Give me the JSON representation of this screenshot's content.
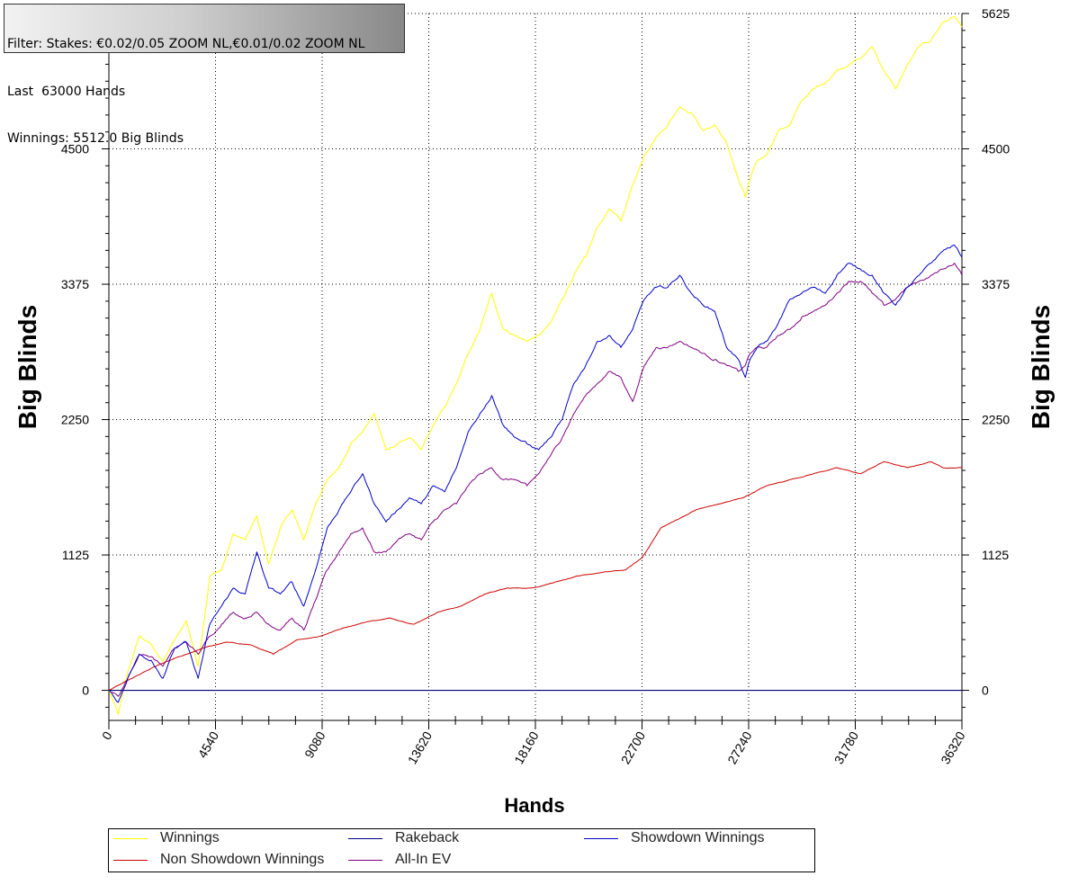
{
  "filter_box": {
    "line1": "Filter: Stakes: €0.02/0.05 ZOOM NL,€0.01/0.02 ZOOM NL",
    "line2": "Last  63000 Hands",
    "line3": "Winnings: 5512.0 Big Blinds"
  },
  "chart_data": {
    "type": "line",
    "xlabel": "Hands",
    "ylabel": "Big Blinds",
    "ylabel_right": "Big Blinds",
    "xlim": [
      0,
      36320
    ],
    "ylim": [
      -250,
      5625
    ],
    "x_ticks": [
      0,
      4540,
      9080,
      13620,
      18160,
      22700,
      27240,
      31780,
      36320
    ],
    "x_tick_labels": [
      "0",
      "4540",
      "9080",
      "13620",
      "18160",
      "22700",
      "27240",
      "31780",
      "36320"
    ],
    "y_ticks": [
      0,
      1125,
      2250,
      3375,
      4500,
      5625
    ],
    "y_tick_labels_left": [
      "0",
      "1125",
      "2250",
      "3375",
      "4500"
    ],
    "y_tick_labels_right": [
      "0",
      "1125",
      "2250",
      "3375",
      "4500",
      "5625"
    ],
    "grid": true,
    "legend_position": "bottom",
    "series": [
      {
        "name": "Winnings",
        "color": "#ffff00",
        "x": [
          0,
          400,
          800,
          1300,
          1800,
          2300,
          2800,
          3300,
          3800,
          4300,
          4800,
          5300,
          5800,
          6300,
          6800,
          7300,
          7800,
          8300,
          8800,
          9300,
          9800,
          10300,
          10800,
          11300,
          11800,
          12300,
          12800,
          13300,
          13800,
          14300,
          14800,
          15300,
          15800,
          16300,
          16800,
          17300,
          17800,
          18300,
          18800,
          19300,
          19800,
          20300,
          20800,
          21300,
          21800,
          22300,
          22800,
          23300,
          23800,
          24300,
          24800,
          25300,
          25800,
          26300,
          26800,
          27100,
          27300,
          27600,
          28000,
          28500,
          29000,
          29500,
          30000,
          30500,
          31000,
          31500,
          32000,
          32500,
          33000,
          33500,
          34000,
          34500,
          35000,
          35500,
          36000,
          36320
        ],
        "values": [
          0,
          -200,
          150,
          450,
          380,
          240,
          420,
          580,
          200,
          950,
          1000,
          1300,
          1250,
          1450,
          1050,
          1350,
          1500,
          1250,
          1550,
          1750,
          1850,
          2050,
          2150,
          2300,
          2000,
          2050,
          2100,
          2000,
          2200,
          2350,
          2550,
          2800,
          3000,
          3300,
          3000,
          2950,
          2900,
          2950,
          3050,
          3250,
          3450,
          3600,
          3850,
          4000,
          3900,
          4200,
          4450,
          4600,
          4700,
          4850,
          4800,
          4650,
          4700,
          4550,
          4250,
          4100,
          4250,
          4400,
          4450,
          4650,
          4700,
          4900,
          5000,
          5050,
          5150,
          5200,
          5250,
          5350,
          5150,
          5000,
          5200,
          5350,
          5400,
          5550,
          5600,
          5512
        ]
      },
      {
        "name": "Rakeback",
        "color": "#000080",
        "x": [
          0,
          36320
        ],
        "values": [
          0,
          0
        ]
      },
      {
        "name": "Showdown Winnings",
        "color": "#0000c8",
        "x": [
          0,
          400,
          800,
          1300,
          1800,
          2300,
          2800,
          3300,
          3800,
          4300,
          4800,
          5300,
          5800,
          6300,
          6800,
          7300,
          7800,
          8300,
          8800,
          9300,
          9800,
          10300,
          10800,
          11300,
          11800,
          12300,
          12800,
          13300,
          13800,
          14300,
          14800,
          15300,
          15800,
          16300,
          16800,
          17300,
          17800,
          18300,
          18800,
          19300,
          19800,
          20300,
          20800,
          21300,
          21800,
          22300,
          22800,
          23300,
          23800,
          24300,
          24800,
          25300,
          25800,
          26300,
          26800,
          27100,
          27300,
          27600,
          28000,
          28500,
          29000,
          29500,
          30000,
          30500,
          31000,
          31500,
          32000,
          32500,
          33000,
          33500,
          34000,
          34500,
          35000,
          35500,
          36000,
          36320
        ],
        "values": [
          0,
          -100,
          100,
          300,
          250,
          100,
          350,
          400,
          100,
          550,
          700,
          850,
          800,
          1150,
          850,
          800,
          900,
          700,
          1000,
          1350,
          1500,
          1650,
          1800,
          1550,
          1400,
          1500,
          1600,
          1550,
          1700,
          1650,
          1850,
          2150,
          2300,
          2450,
          2200,
          2100,
          2050,
          2000,
          2100,
          2250,
          2550,
          2700,
          2900,
          2950,
          2850,
          3000,
          3250,
          3350,
          3350,
          3450,
          3300,
          3200,
          3150,
          2850,
          2750,
          2600,
          2750,
          2850,
          2900,
          3050,
          3250,
          3300,
          3350,
          3300,
          3450,
          3550,
          3500,
          3450,
          3300,
          3200,
          3350,
          3450,
          3550,
          3650,
          3700,
          3600
        ]
      },
      {
        "name": "Non Showdown Winnings",
        "color": "#cc0000",
        "x": [
          0,
          1000,
          2000,
          3000,
          4000,
          5000,
          6000,
          7000,
          8000,
          9000,
          10000,
          11000,
          12000,
          13000,
          14000,
          15000,
          16000,
          17000,
          18000,
          19000,
          20000,
          21000,
          22000,
          22700,
          23500,
          24000,
          25000,
          26000,
          27000,
          28000,
          29000,
          30000,
          31000,
          32000,
          32500,
          33000,
          34000,
          35000,
          35500,
          36320
        ],
        "values": [
          0,
          100,
          200,
          280,
          350,
          400,
          380,
          300,
          420,
          450,
          520,
          570,
          600,
          550,
          650,
          700,
          800,
          850,
          850,
          900,
          950,
          980,
          1000,
          1100,
          1350,
          1400,
          1500,
          1550,
          1600,
          1700,
          1750,
          1800,
          1850,
          1800,
          1850,
          1900,
          1850,
          1900,
          1850,
          1850
        ]
      },
      {
        "name": "All-In EV",
        "color": "#800080",
        "x": [
          0,
          400,
          800,
          1300,
          1800,
          2300,
          2800,
          3300,
          3800,
          4300,
          4800,
          5300,
          5800,
          6300,
          6800,
          7300,
          7800,
          8300,
          8800,
          9300,
          9800,
          10300,
          10800,
          11300,
          11800,
          12300,
          12800,
          13300,
          13800,
          14300,
          14800,
          15300,
          15800,
          16300,
          16800,
          17300,
          17800,
          18300,
          18800,
          19300,
          19800,
          20300,
          20800,
          21300,
          21800,
          22300,
          22800,
          23300,
          23800,
          24300,
          24800,
          25300,
          25800,
          26300,
          26800,
          27100,
          27300,
          27600,
          28000,
          28500,
          29000,
          29500,
          30000,
          30500,
          31000,
          31500,
          32000,
          32500,
          33000,
          33500,
          34000,
          34500,
          35000,
          35500,
          36000,
          36320
        ],
        "values": [
          0,
          -50,
          100,
          300,
          280,
          200,
          350,
          400,
          300,
          450,
          550,
          650,
          600,
          650,
          550,
          500,
          600,
          500,
          750,
          1000,
          1150,
          1300,
          1350,
          1150,
          1150,
          1250,
          1300,
          1250,
          1400,
          1500,
          1550,
          1700,
          1800,
          1850,
          1750,
          1750,
          1700,
          1800,
          1950,
          2100,
          2300,
          2450,
          2550,
          2650,
          2600,
          2400,
          2700,
          2850,
          2850,
          2900,
          2850,
          2800,
          2750,
          2700,
          2650,
          2700,
          2800,
          2850,
          2850,
          2950,
          3000,
          3100,
          3150,
          3200,
          3300,
          3400,
          3400,
          3300,
          3200,
          3250,
          3350,
          3400,
          3450,
          3500,
          3550,
          3450
        ]
      }
    ]
  },
  "legend": {
    "items": [
      {
        "label": "Winnings",
        "color": "#ffff00"
      },
      {
        "label": "Non Showdown Winnings",
        "color": "#cc0000"
      },
      {
        "label": "Rakeback",
        "color": "#000080"
      },
      {
        "label": "All-In EV",
        "color": "#800080"
      },
      {
        "label": "Showdown Winnings",
        "color": "#0000c8"
      }
    ]
  }
}
